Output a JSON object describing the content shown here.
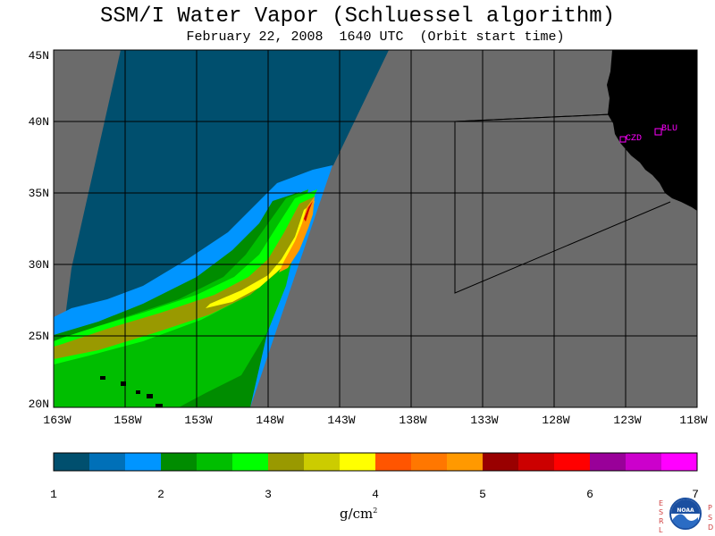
{
  "title": "SSM/I Water Vapor (Schluessel algorithm)",
  "subtitle": "February 22, 2008  1640 UTC  (Orbit start time)",
  "map": {
    "lat_labels": [
      "45N",
      "40N",
      "35N",
      "30N",
      "25N",
      "20N"
    ],
    "lon_labels": [
      "163W",
      "158W",
      "153W",
      "148W",
      "143W",
      "138W",
      "133W",
      "128W",
      "123W",
      "118W"
    ],
    "stations": [
      {
        "name": "CZD"
      },
      {
        "name": "BLU"
      }
    ],
    "colors": {
      "no_data": "#6b6b6b",
      "land": "#000000",
      "station": "#ff00ff",
      "grid": "#000000"
    }
  },
  "colorbar": {
    "colors": [
      "#004f6e",
      "#0070b8",
      "#0095ff",
      "#008c00",
      "#00be00",
      "#00ff00",
      "#999900",
      "#cccc00",
      "#ffff00",
      "#ff5500",
      "#ff7700",
      "#ff9900",
      "#990000",
      "#cc0000",
      "#ff0000",
      "#990099",
      "#cc00cc",
      "#ff00ff"
    ],
    "tick_labels": [
      "1",
      "2",
      "3",
      "4",
      "5",
      "6",
      "7"
    ],
    "units": "g/cm",
    "units_exp": "2"
  },
  "logo": {
    "left_letters": [
      "E",
      "S",
      "R",
      "L"
    ],
    "right_letters": [
      "P",
      "S",
      "D"
    ],
    "badge_text": "NOAA"
  }
}
